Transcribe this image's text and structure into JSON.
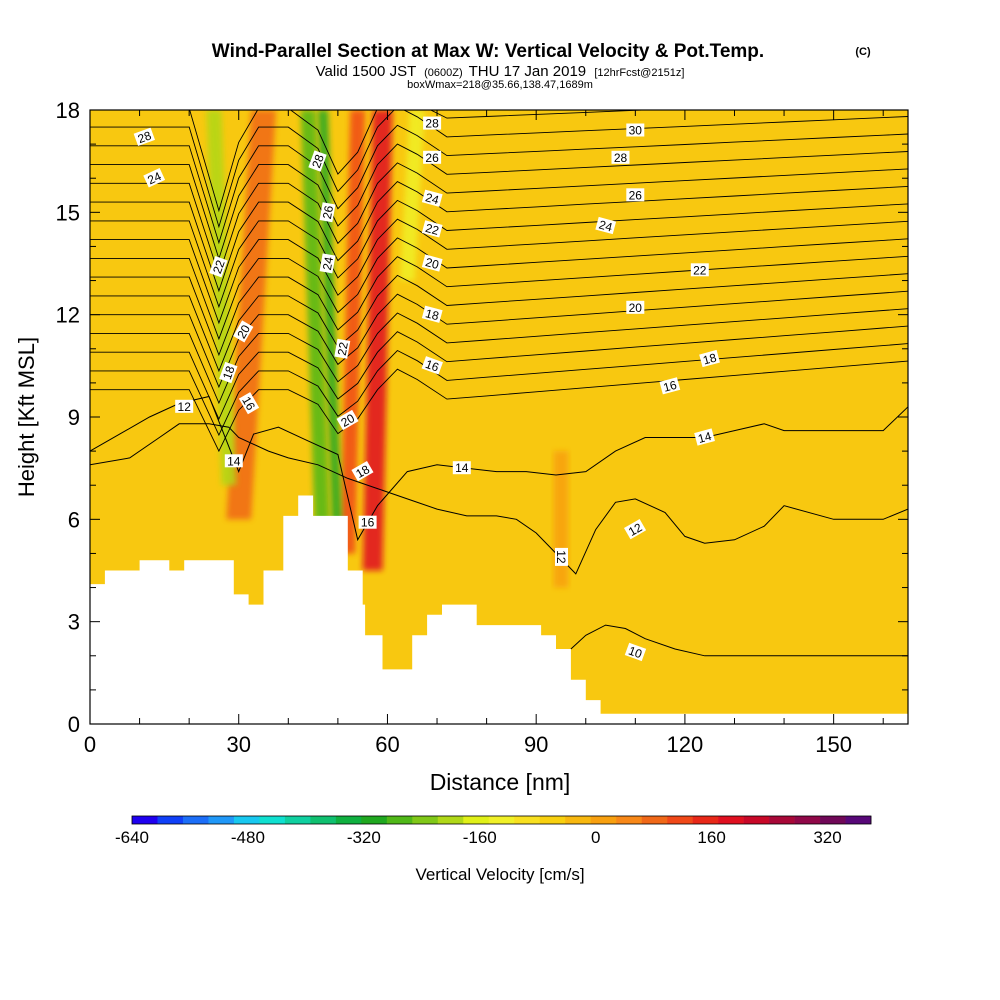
{
  "chart_data": {
    "type": "contour",
    "title": "Wind-Parallel Section at Max W: Vertical Velocity & Pot.Temp.",
    "title_badge": "(C)",
    "subtitle_valid": "Valid 1500 JST",
    "subtitle_utc": "(0600Z)",
    "subtitle_date": "THU 17 Jan 2019",
    "subtitle_fcst": "[12hrFcst@2151z]",
    "subtitle_box": "boxWmax=218@35.66,138.47,1689m",
    "xlabel": "Distance [nm]",
    "ylabel": "Height [Kft MSL]",
    "xlim": [
      0,
      165
    ],
    "ylim": [
      0,
      18
    ],
    "xticks": [
      0,
      30,
      60,
      90,
      120,
      150
    ],
    "yticks": [
      0,
      3,
      6,
      9,
      12,
      15,
      18
    ],
    "colorbar": {
      "label": "Vertical Velocity [cm/s]",
      "min": -640,
      "max": 380,
      "step": 40,
      "ticks": [
        -640,
        -480,
        -320,
        -160,
        0,
        160,
        320
      ],
      "colors": [
        "#1f00f0",
        "#1040f8",
        "#1c6ef8",
        "#2098f8",
        "#18c8f0",
        "#10e0d0",
        "#10d0a0",
        "#10c070",
        "#10b040",
        "#20a820",
        "#50b818",
        "#80c818",
        "#b0d818",
        "#e0f018",
        "#f0f028",
        "#f8e020",
        "#f8d010",
        "#f8b810",
        "#f8a010",
        "#f88818",
        "#f06818",
        "#f04818",
        "#e82818",
        "#e01020",
        "#c80828",
        "#a80838",
        "#900848",
        "#700858",
        "#580878"
      ]
    },
    "terrain": {
      "distance_nm": [
        0,
        3,
        3,
        10,
        10,
        16,
        16,
        19,
        19,
        29,
        29,
        32,
        32,
        35,
        35,
        39,
        39,
        42,
        42,
        45,
        45,
        52,
        52,
        55,
        55,
        55.5,
        55.5,
        59,
        59,
        65,
        65,
        68,
        68,
        71,
        71,
        78,
        78,
        91,
        91,
        94,
        94,
        97,
        97,
        100,
        100,
        103,
        103,
        165
      ],
      "height_kft": [
        4.1,
        4.1,
        4.5,
        4.5,
        4.8,
        4.8,
        4.5,
        4.5,
        4.8,
        4.8,
        3.8,
        3.8,
        3.5,
        3.5,
        4.5,
        4.5,
        6.1,
        6.1,
        6.7,
        6.7,
        6.1,
        6.1,
        4.5,
        4.5,
        3.5,
        3.5,
        2.6,
        2.6,
        1.6,
        1.6,
        2.6,
        2.6,
        3.2,
        3.2,
        3.5,
        3.5,
        2.9,
        2.9,
        2.6,
        2.6,
        2.2,
        2.2,
        1.3,
        1.3,
        0.7,
        0.7,
        0.3,
        0.3
      ]
    },
    "velocity_features": [
      {
        "kind": "updraft",
        "value": 300,
        "color": "#e01020",
        "base": [
          57,
          4.5
        ],
        "top": [
          59,
          18
        ],
        "width_nm": 4
      },
      {
        "kind": "updraft",
        "value": 200,
        "color": "#f04818",
        "base": [
          52,
          5
        ],
        "top": [
          54,
          18
        ],
        "width_nm": 3
      },
      {
        "kind": "updraft",
        "value": 160,
        "color": "#f06818",
        "base": [
          30,
          6
        ],
        "top": [
          35,
          18
        ],
        "width_nm": 5
      },
      {
        "kind": "updraft",
        "value": 80,
        "color": "#f8a010",
        "base": [
          95,
          4
        ],
        "top": [
          95,
          8
        ],
        "width_nm": 3
      },
      {
        "kind": "downdraft",
        "value": -200,
        "color": "#50b818",
        "base": [
          47,
          5
        ],
        "top": [
          44,
          18
        ],
        "width_nm": 3
      },
      {
        "kind": "downdraft",
        "value": -240,
        "color": "#20a820",
        "base": [
          50,
          5
        ],
        "top": [
          47,
          18
        ],
        "width_nm": 2
      },
      {
        "kind": "downdraft",
        "value": -140,
        "color": "#b0d818",
        "base": [
          28,
          7
        ],
        "top": [
          25,
          18
        ],
        "width_nm": 3
      },
      {
        "kind": "downdraft",
        "value": -40,
        "color": "#f0f028",
        "base": [
          64,
          13
        ],
        "top": [
          66,
          18
        ],
        "width_nm": 3
      }
    ],
    "isentropes": [
      {
        "theta": 10,
        "x": [
          97,
          100,
          104,
          108,
          112,
          118,
          124,
          130,
          140,
          150,
          160,
          165
        ],
        "y": [
          2.2,
          2.6,
          2.9,
          2.8,
          2.5,
          2.2,
          2.0,
          2.0,
          2.0,
          2.0,
          2.0,
          2.0
        ]
      },
      {
        "theta": 12,
        "x": [
          0,
          8,
          14,
          18,
          24,
          28,
          30,
          36,
          40,
          46,
          52,
          58,
          64,
          70,
          76,
          82,
          86,
          90,
          94,
          98,
          102,
          106,
          110,
          116,
          120,
          124,
          130,
          136,
          140,
          150,
          160,
          165
        ],
        "y": [
          7.6,
          7.8,
          8.4,
          8.8,
          8.8,
          8.7,
          8.4,
          8.0,
          7.8,
          7.6,
          7.2,
          6.9,
          6.6,
          6.3,
          6.1,
          6.1,
          6.0,
          5.6,
          5.0,
          4.4,
          5.7,
          6.5,
          6.6,
          6.2,
          5.5,
          5.3,
          5.4,
          5.8,
          6.4,
          6.0,
          6.0,
          6.3
        ]
      },
      {
        "theta": 14,
        "x": [
          0,
          6,
          12,
          18,
          24,
          30,
          33,
          38,
          44,
          50,
          54,
          58,
          64,
          70,
          76,
          82,
          88,
          94,
          100,
          106,
          112,
          118,
          124,
          130,
          136,
          140,
          150,
          160,
          165
        ],
        "y": [
          8.0,
          8.5,
          9.0,
          9.4,
          9.6,
          7.4,
          8.5,
          8.7,
          8.3,
          7.9,
          5.4,
          6.4,
          7.4,
          7.6,
          7.5,
          7.4,
          7.4,
          7.3,
          7.4,
          8.0,
          8.4,
          8.4,
          8.4,
          8.6,
          8.8,
          8.6,
          8.6,
          8.6,
          9.3
        ]
      }
    ],
    "annotations": [
      {
        "text": "28",
        "x": 11,
        "y": 17.2,
        "angle": 20
      },
      {
        "text": "24",
        "x": 13,
        "y": 16.0,
        "angle": 25
      },
      {
        "text": "22",
        "x": 26,
        "y": 13.4,
        "angle": 70
      },
      {
        "text": "20",
        "x": 31,
        "y": 11.5,
        "angle": 60
      },
      {
        "text": "18",
        "x": 28,
        "y": 10.3,
        "angle": 70
      },
      {
        "text": "16",
        "x": 32,
        "y": 9.4,
        "angle": -60
      },
      {
        "text": "14",
        "x": 29,
        "y": 7.7,
        "angle": 0
      },
      {
        "text": "12",
        "x": 19,
        "y": 9.3,
        "angle": 0
      },
      {
        "text": "28",
        "x": 46,
        "y": 16.5,
        "angle": 70
      },
      {
        "text": "26",
        "x": 48,
        "y": 15.0,
        "angle": 80
      },
      {
        "text": "24",
        "x": 48,
        "y": 13.5,
        "angle": 80
      },
      {
        "text": "22",
        "x": 51,
        "y": 11.0,
        "angle": 80
      },
      {
        "text": "20",
        "x": 52,
        "y": 8.9,
        "angle": 30
      },
      {
        "text": "18",
        "x": 55,
        "y": 7.4,
        "angle": 30
      },
      {
        "text": "16",
        "x": 56,
        "y": 5.9,
        "angle": 0
      },
      {
        "text": "28",
        "x": 69,
        "y": 17.6,
        "angle": 0
      },
      {
        "text": "26",
        "x": 69,
        "y": 16.6,
        "angle": 0
      },
      {
        "text": "24",
        "x": 69,
        "y": 15.4,
        "angle": -15
      },
      {
        "text": "22",
        "x": 69,
        "y": 14.5,
        "angle": -15
      },
      {
        "text": "20",
        "x": 69,
        "y": 13.5,
        "angle": -15
      },
      {
        "text": "18",
        "x": 69,
        "y": 12.0,
        "angle": -15
      },
      {
        "text": "16",
        "x": 69,
        "y": 10.5,
        "angle": -20
      },
      {
        "text": "14",
        "x": 75,
        "y": 7.5,
        "angle": 0
      },
      {
        "text": "30",
        "x": 110,
        "y": 17.4,
        "angle": 0
      },
      {
        "text": "28",
        "x": 107,
        "y": 16.6,
        "angle": 0
      },
      {
        "text": "26",
        "x": 110,
        "y": 15.5,
        "angle": 0
      },
      {
        "text": "24",
        "x": 104,
        "y": 14.6,
        "angle": -15
      },
      {
        "text": "22",
        "x": 123,
        "y": 13.3,
        "angle": 0
      },
      {
        "text": "20",
        "x": 110,
        "y": 12.2,
        "angle": 0
      },
      {
        "text": "18",
        "x": 125,
        "y": 10.7,
        "angle": 15
      },
      {
        "text": "16",
        "x": 117,
        "y": 9.9,
        "angle": 15
      },
      {
        "text": "14",
        "x": 124,
        "y": 8.4,
        "angle": 15
      },
      {
        "text": "12",
        "x": 110,
        "y": 5.7,
        "angle": 30
      },
      {
        "text": "12",
        "x": 95,
        "y": 4.9,
        "angle": -90
      },
      {
        "text": "10",
        "x": 110,
        "y": 2.1,
        "angle": -20
      }
    ]
  }
}
